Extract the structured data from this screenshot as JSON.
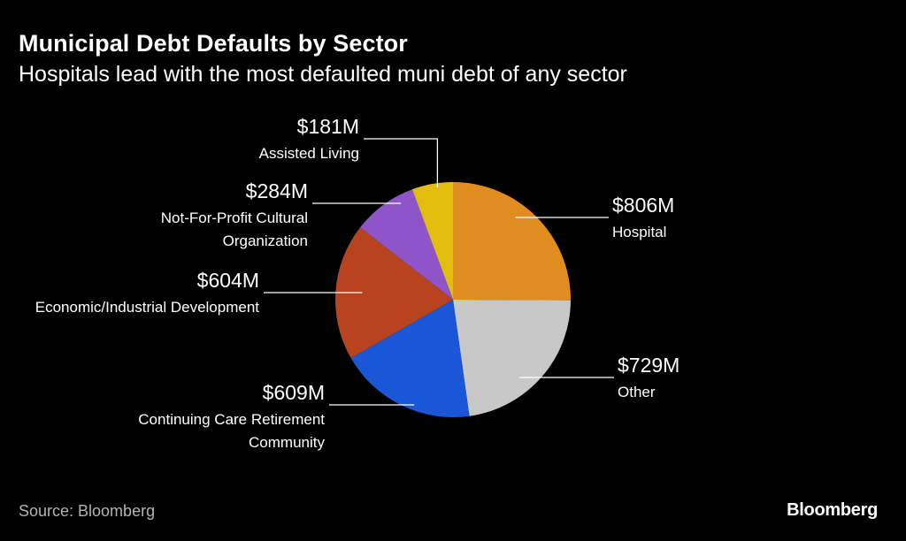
{
  "header": {
    "title": "Municipal Debt Defaults by Sector",
    "subtitle": "Hospitals lead with the most defaulted muni debt of any sector"
  },
  "footer": {
    "source": "Source: Bloomberg",
    "logo": "Bloomberg"
  },
  "chart_data": {
    "type": "pie",
    "title": "Municipal Debt Defaults by Sector",
    "subtitle": "Hospitals lead with the most defaulted muni debt of any sector",
    "unit": "$M",
    "start_angle": "12 o'clock",
    "direction": "clockwise",
    "slices": [
      {
        "label": "Hospital",
        "lines": [
          "Hospital"
        ],
        "value": 806,
        "value_label": "$806M",
        "color": "#e08c1f"
      },
      {
        "label": "Other",
        "lines": [
          "Other"
        ],
        "value": 729,
        "value_label": "$729M",
        "color": "#c8c8c8"
      },
      {
        "label": "Continuing Care Retirement Community",
        "lines": [
          "Continuing Care Retirement",
          "Community"
        ],
        "value": 609,
        "value_label": "$609M",
        "color": "#1a56d6"
      },
      {
        "label": "Economic/Industrial Development",
        "lines": [
          "Economic/Industrial Development"
        ],
        "value": 604,
        "value_label": "$604M",
        "color": "#b8431f"
      },
      {
        "label": "Not-For-Profit Cultural Organization",
        "lines": [
          "Not-For-Profit Cultural",
          "Organization"
        ],
        "value": 284,
        "value_label": "$284M",
        "color": "#8e55c8"
      },
      {
        "label": "Assisted Living",
        "lines": [
          "Assisted Living"
        ],
        "value": 181,
        "value_label": "$181M",
        "color": "#e3bd0e"
      }
    ]
  }
}
